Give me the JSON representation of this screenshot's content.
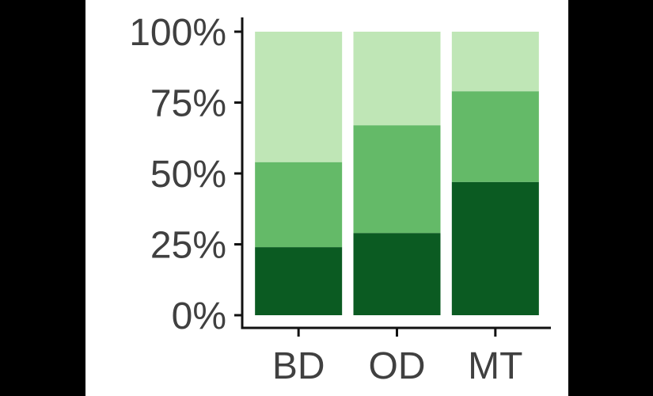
{
  "chart_data": {
    "type": "bar",
    "stacked": true,
    "categories": [
      "BD",
      "OD",
      "MT"
    ],
    "series": [
      {
        "values": [
          24,
          29,
          47
        ],
        "color": "#0b5b22"
      },
      {
        "values": [
          30,
          38,
          32
        ],
        "color": "#64ba68"
      },
      {
        "values": [
          46,
          33,
          21
        ],
        "color": "#bfe6b6"
      }
    ],
    "ylim": [
      0,
      100
    ],
    "yticks": [
      0,
      25,
      50,
      75,
      100
    ],
    "ytick_labels": [
      "0%",
      "25%",
      "50%",
      "75%",
      "100%"
    ],
    "title": "",
    "xlabel": "",
    "ylabel": "",
    "grid": false,
    "legend": "none"
  }
}
